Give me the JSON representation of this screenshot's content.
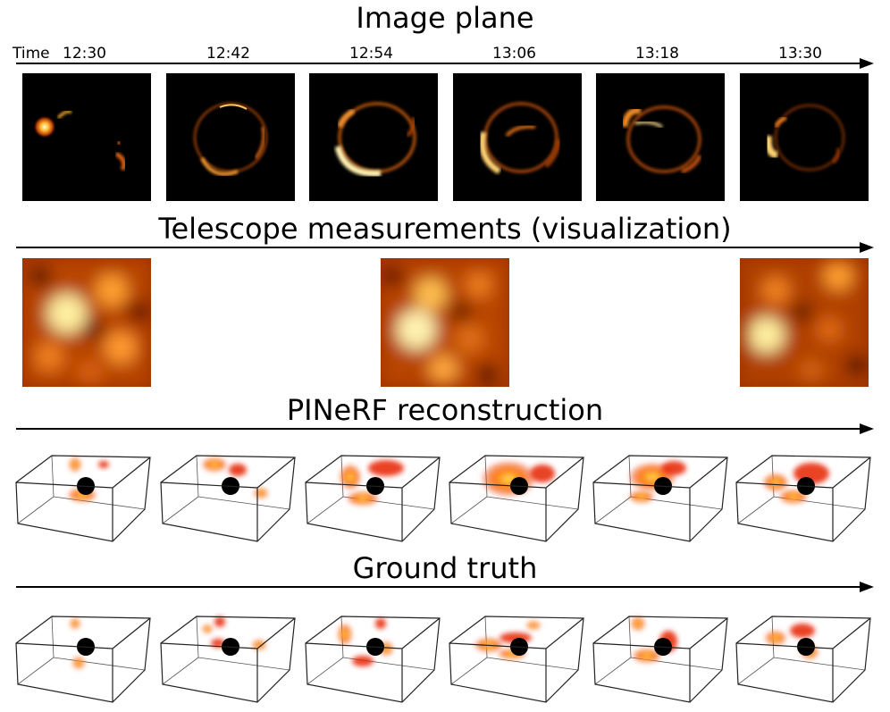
{
  "sections": {
    "image_plane": "Image plane",
    "telescope": "Telescope measurements (visualization)",
    "reconstruction": "PINeRF reconstruction",
    "ground_truth": "Ground truth"
  },
  "time": {
    "label": "Time",
    "ticks": [
      "12:30",
      "12:42",
      "12:54",
      "13:06",
      "13:18",
      "13:30"
    ]
  },
  "colors": {
    "background": "#000000",
    "hot_dark": "#3a0a00",
    "hot_mid": "#d8581a",
    "hot_bright": "#fff3b0",
    "blob_red": "#e62400",
    "blob_yellow": "#ffe25a"
  }
}
